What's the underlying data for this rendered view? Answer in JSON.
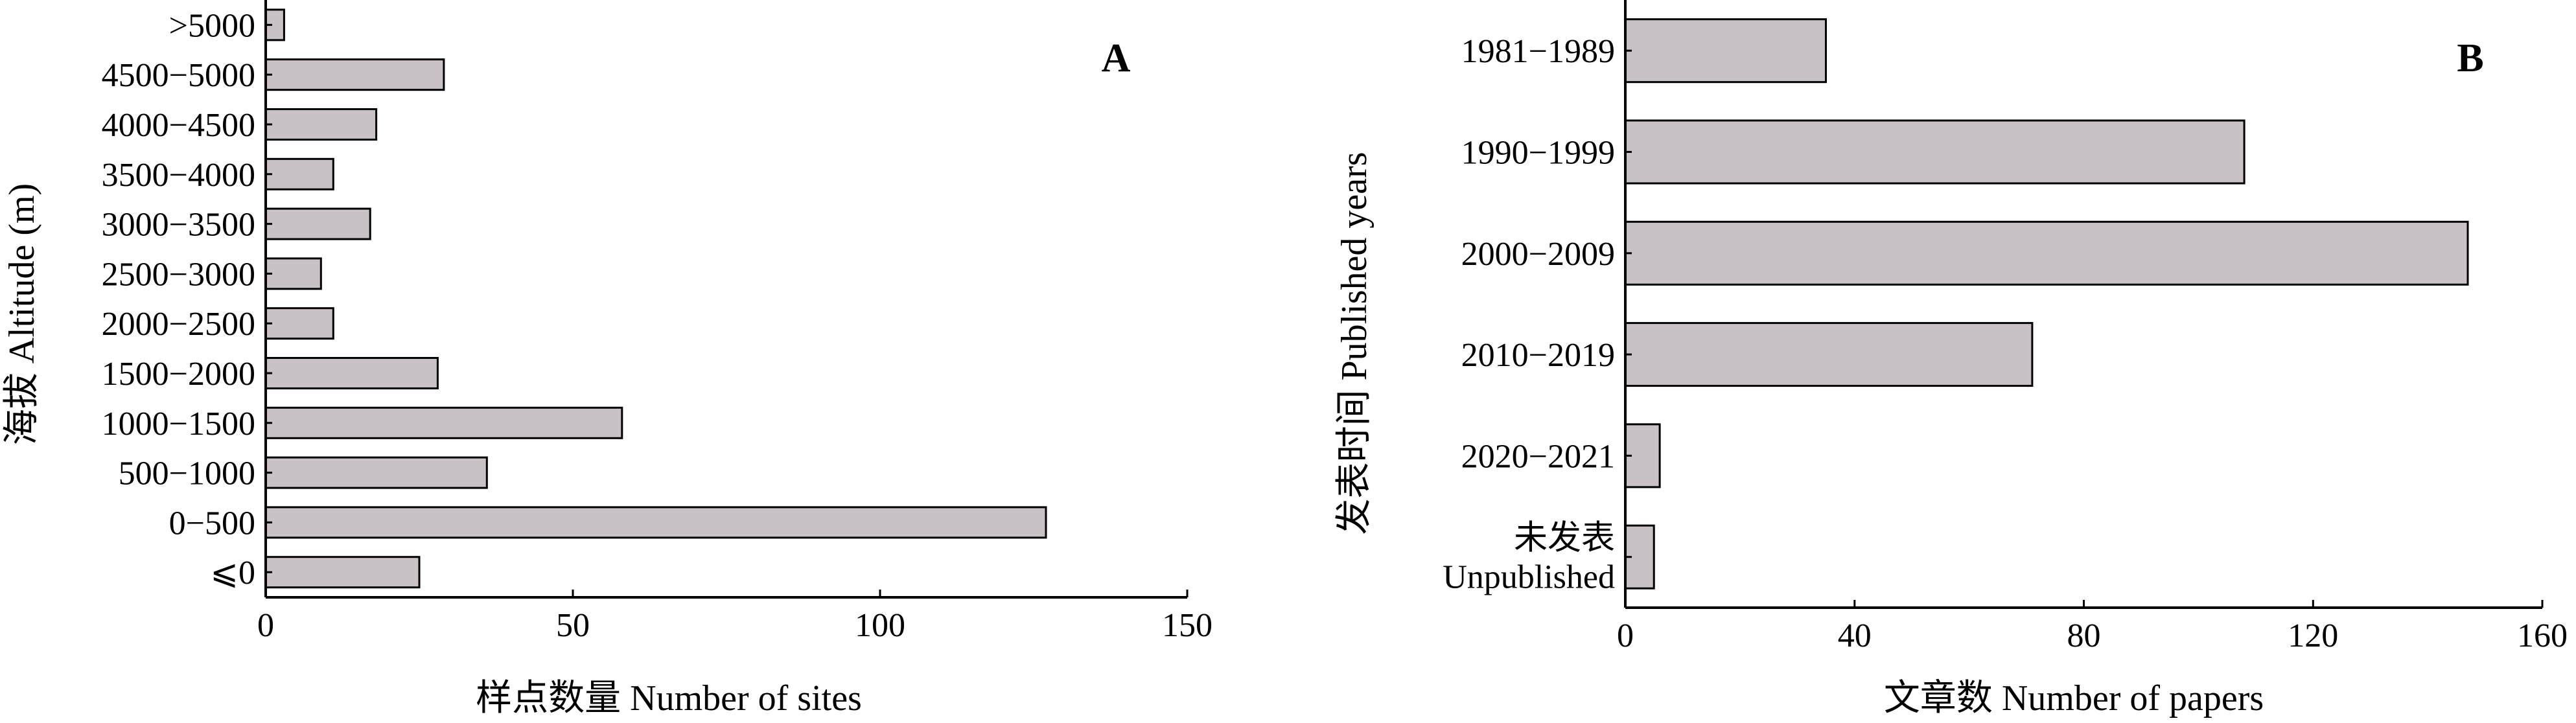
{
  "chart_data": [
    {
      "type": "bar",
      "orientation": "horizontal",
      "panel_label": "A",
      "categories": [
        ">5000",
        "4500−5000",
        "4000−4500",
        "3500−4000",
        "3000−3500",
        "2500−3000",
        "2000−2500",
        "1500−2000",
        "1000−1500",
        "500−1000",
        "0−500",
        "⩽0"
      ],
      "values": [
        3,
        29,
        18,
        11,
        17,
        9,
        11,
        28,
        58,
        36,
        127,
        25
      ],
      "xlabel": "样点数量 Number of sites",
      "ylabel": "海拔 Altitude (m)",
      "xlim": [
        0,
        150
      ],
      "xticks": [
        "0",
        "50",
        "100",
        "150"
      ],
      "grid": false,
      "bar_color": "#c8c1c6"
    },
    {
      "type": "bar",
      "orientation": "horizontal",
      "panel_label": "B",
      "categories": [
        [
          "1981−1989"
        ],
        [
          "1990−1999"
        ],
        [
          "2000−2009"
        ],
        [
          "2010−2019"
        ],
        [
          "2020−2021"
        ],
        [
          "未发表",
          "Unpublished"
        ]
      ],
      "values": [
        35,
        108,
        147,
        71,
        6,
        5
      ],
      "xlabel": "文章数 Number of papers",
      "ylabel": "发表时间 Published years",
      "xlim": [
        0,
        160
      ],
      "xticks": [
        "0",
        "40",
        "80",
        "120",
        "160"
      ],
      "grid": false,
      "bar_color": "#c8c1c6"
    }
  ]
}
